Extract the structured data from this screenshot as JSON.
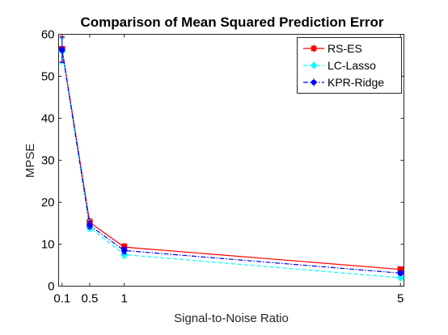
{
  "chart_data": {
    "type": "line",
    "title": "Comparison of Mean Squared Prediction Error",
    "xlabel": "Signal-to-Noise Ratio",
    "ylabel": "MPSE",
    "x": [
      0.1,
      0.5,
      1,
      5
    ],
    "xticks": [
      "0.1",
      "0.5",
      "1",
      "5"
    ],
    "yticks": [
      "0",
      "10",
      "20",
      "30",
      "40",
      "50",
      "60"
    ],
    "xlim": [
      0.05,
      5.05
    ],
    "ylim": [
      0,
      60
    ],
    "grid": false,
    "legend_position": "top-right",
    "series": [
      {
        "name": "RS-ES",
        "color": "#ff0000",
        "line_style": "solid",
        "marker": "square",
        "values": [
          56.5,
          15.2,
          9.3,
          4.0
        ],
        "errors": [
          3.0,
          0.9,
          0.8,
          0.3
        ]
      },
      {
        "name": "LC-Lasso",
        "color": "#00ffff",
        "line_style": "dashed",
        "marker": "diamond",
        "values": [
          56.0,
          14.0,
          7.5,
          2.0
        ],
        "errors": [
          3.0,
          0.9,
          0.8,
          0.3
        ]
      },
      {
        "name": "KPR-Ridge",
        "color": "#0000ff",
        "line_style": "dashdot",
        "marker": "circle",
        "values": [
          56.3,
          14.5,
          8.5,
          3.1
        ],
        "errors": [
          3.0,
          0.9,
          0.8,
          0.3
        ]
      }
    ]
  }
}
